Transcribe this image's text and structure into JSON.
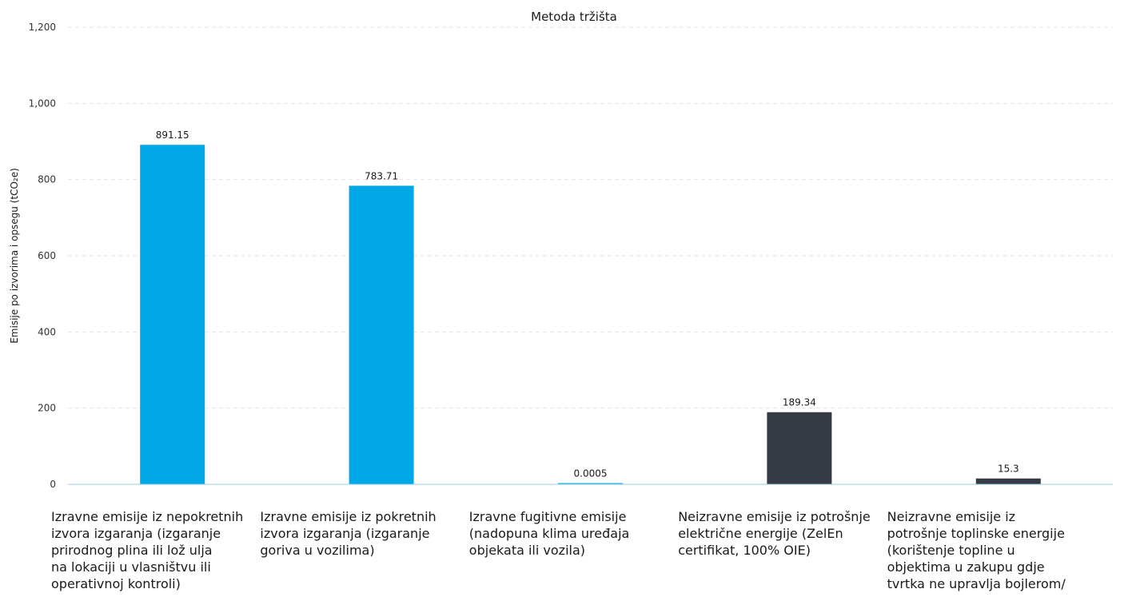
{
  "chart_data": {
    "type": "bar",
    "title": "Metoda tržišta",
    "ylabel": "Emisije po izvorima i opsegu (tCO₂e)",
    "ylim": [
      0,
      1200
    ],
    "yticks": [
      0,
      200,
      400,
      600,
      800,
      1000,
      1200
    ],
    "ytick_labels": [
      "0",
      "200",
      "400",
      "600",
      "800",
      "1,000",
      "1,200"
    ],
    "grid": true,
    "categories": [
      "Izravne emisije iz nepokretnih\nizvora izgaranja (izgaranje\nprirodnog plina ili lož ulja\nna lokaciji u vlasništvu ili\noperativnoj kontroli)",
      "Izravne emisije iz pokretnih\nizvora izgaranja (izgaranje\ngoriva u vozilima)",
      "Izravne fugitivne emisije\n(nadopuna klima uređaja\nobjekata ili vozila)",
      "Neizravne emisije iz potrošnje\nelektrične energije (ZelEn\ncertifikat, 100% OIE)",
      "Neizravne emisije iz\npotrošnje toplinske energije\n(korištenje topline u\nobjektima u zakupu gdje\ntvrtka ne upravlja bojlerom/"
    ],
    "values": [
      891.15,
      783.71,
      0.0005,
      189.34,
      15.3
    ],
    "value_labels": [
      "891.15",
      "783.71",
      "0.0005",
      "189.34",
      "15.3"
    ],
    "colors": [
      "#00a8e8",
      "#00a8e8",
      "#00a8e8",
      "#343b45",
      "#343b45"
    ]
  }
}
